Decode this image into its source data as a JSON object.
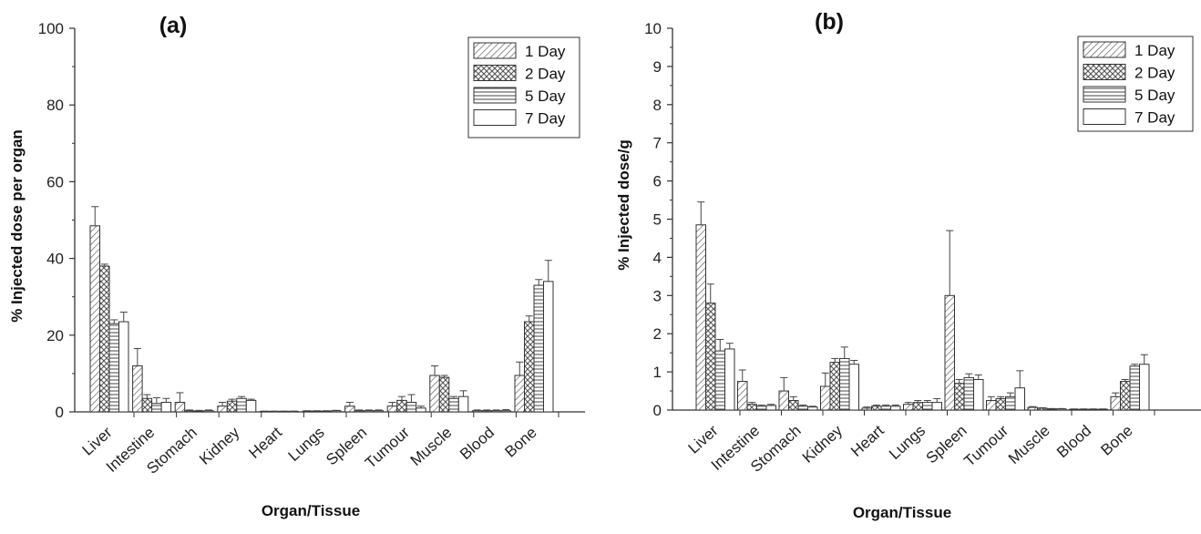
{
  "colors": {
    "axis": "#333333",
    "bar_stroke": "#333333",
    "bar_fill": "#ffffff",
    "hatch": "#555555"
  },
  "chart_data": [
    {
      "type": "bar",
      "panel_label": "(a)",
      "xlabel": "Organ/Tissue",
      "ylabel": "% Injected dose per organ",
      "ylim": [
        0,
        100
      ],
      "yticks": [
        0,
        20,
        40,
        60,
        80,
        100
      ],
      "categories": [
        "Liver",
        "Intestine",
        "Stomach",
        "Kidney",
        "Heart",
        "Lungs",
        "Spleen",
        "Tumour",
        "Muscle",
        "Blood",
        "Bone"
      ],
      "legend_position": "top-right",
      "series": [
        {
          "name": "1 Day",
          "pattern": "diag",
          "values": [
            48.5,
            12.0,
            2.5,
            1.5,
            0.1,
            0.2,
            1.5,
            1.5,
            9.5,
            0.3,
            9.5
          ],
          "errors": [
            5.0,
            4.5,
            2.5,
            1.0,
            0.1,
            0.1,
            1.0,
            1.0,
            2.5,
            0.2,
            3.5
          ]
        },
        {
          "name": "2 Day",
          "pattern": "cross",
          "values": [
            38.0,
            3.5,
            0.3,
            2.8,
            0.1,
            0.2,
            0.3,
            3.0,
            9.0,
            0.3,
            23.5
          ],
          "errors": [
            0.5,
            1.0,
            0.2,
            0.5,
            0.1,
            0.1,
            0.2,
            1.0,
            0.5,
            0.2,
            1.5
          ]
        },
        {
          "name": "5 Day",
          "pattern": "horiz",
          "values": [
            23.0,
            2.2,
            0.2,
            3.5,
            0.1,
            0.2,
            0.3,
            2.5,
            3.5,
            0.3,
            33.0
          ],
          "errors": [
            1.0,
            1.5,
            0.2,
            0.5,
            0.1,
            0.1,
            0.2,
            2.0,
            0.5,
            0.2,
            1.5
          ]
        },
        {
          "name": "7 Day",
          "pattern": "none",
          "values": [
            23.5,
            2.5,
            0.3,
            3.0,
            0.1,
            0.3,
            0.3,
            1.0,
            4.0,
            0.3,
            34.0
          ],
          "errors": [
            2.5,
            1.0,
            0.2,
            0.3,
            0.1,
            0.1,
            0.2,
            0.5,
            1.5,
            0.3,
            5.5
          ]
        }
      ]
    },
    {
      "type": "bar",
      "panel_label": "(b)",
      "xlabel": "Organ/Tissue",
      "ylabel": "% Injected dose/g",
      "ylim": [
        0,
        10
      ],
      "yticks": [
        0,
        1,
        2,
        3,
        4,
        5,
        6,
        7,
        8,
        9,
        10
      ],
      "categories": [
        "Liver",
        "Intestine",
        "Stomach",
        "Kidney",
        "Heart",
        "Lungs",
        "Spleen",
        "Tumour",
        "Muscle",
        "Blood",
        "Bone"
      ],
      "legend_position": "top-right",
      "series": [
        {
          "name": "1 Day",
          "pattern": "diag",
          "values": [
            4.85,
            0.75,
            0.5,
            0.62,
            0.05,
            0.15,
            3.0,
            0.25,
            0.07,
            0.02,
            0.35
          ],
          "errors": [
            0.6,
            0.3,
            0.35,
            0.35,
            0.03,
            0.05,
            1.7,
            0.1,
            0.02,
            0.01,
            0.1
          ]
        },
        {
          "name": "2 Day",
          "pattern": "cross",
          "values": [
            2.8,
            0.15,
            0.25,
            1.25,
            0.1,
            0.2,
            0.7,
            0.3,
            0.05,
            0.02,
            0.75
          ],
          "errors": [
            0.5,
            0.05,
            0.1,
            0.1,
            0.03,
            0.05,
            0.1,
            0.05,
            0.01,
            0.01,
            0.05
          ]
        },
        {
          "name": "5 Day",
          "pattern": "horiz",
          "values": [
            1.55,
            0.1,
            0.1,
            1.35,
            0.1,
            0.2,
            0.85,
            0.35,
            0.03,
            0.02,
            1.15
          ],
          "errors": [
            0.3,
            0.03,
            0.03,
            0.3,
            0.03,
            0.05,
            0.1,
            0.1,
            0.01,
            0.01,
            0.05
          ]
        },
        {
          "name": "7 Day",
          "pattern": "none",
          "values": [
            1.6,
            0.12,
            0.08,
            1.2,
            0.1,
            0.2,
            0.8,
            0.58,
            0.03,
            0.02,
            1.2
          ],
          "errors": [
            0.15,
            0.03,
            0.02,
            0.1,
            0.03,
            0.1,
            0.12,
            0.45,
            0.01,
            0.01,
            0.25
          ]
        }
      ]
    }
  ]
}
